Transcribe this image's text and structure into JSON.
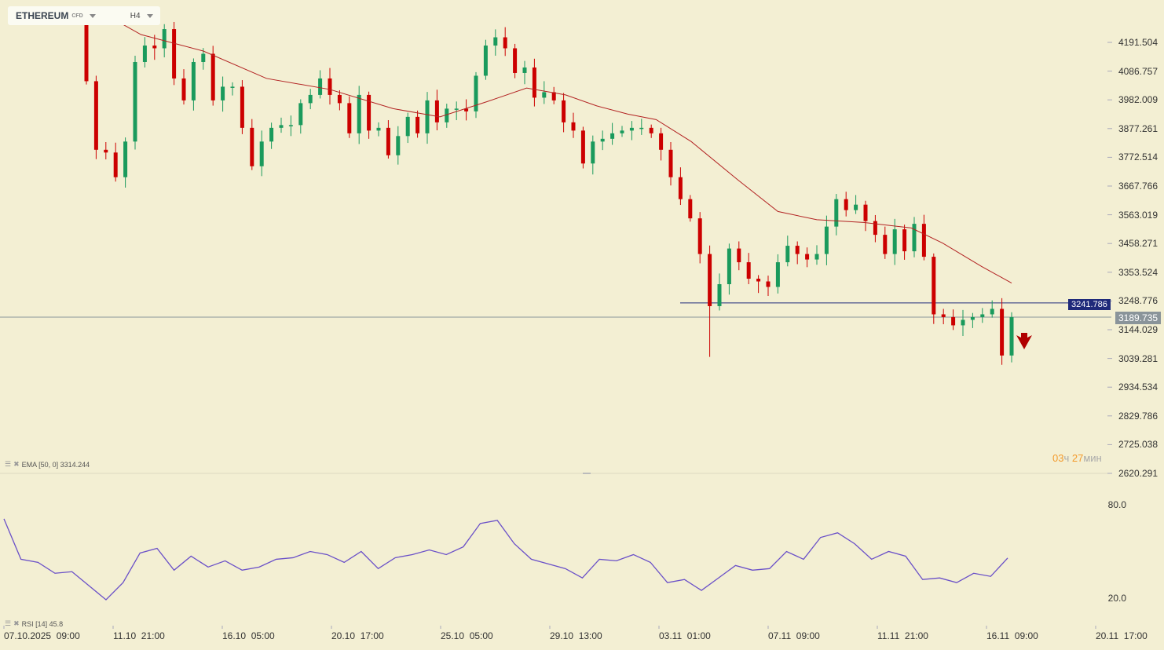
{
  "header": {
    "symbol": "ETHEREUM",
    "badge": "CFD",
    "timeframe": "H4"
  },
  "indicators": {
    "ema_label": "EMA [50, 0] 3314.244",
    "rsi_label": "RSI [14] 45.8"
  },
  "timer": {
    "hours": "03",
    "h_unit": "ч",
    "minutes": "27",
    "m_unit": "мин"
  },
  "colors": {
    "up": "#1a9a5c",
    "down": "#cc0000",
    "ema": "#b22222",
    "rsi": "#6a50c8",
    "level": "#1f2a7a",
    "current": "#8a949a"
  },
  "chart_data": {
    "type": "candlestick",
    "title": "ETHEREUM CFD H4",
    "y_ticks": [
      "4191.504",
      "4086.757",
      "3982.009",
      "3877.261",
      "3772.514",
      "3667.766",
      "3563.019",
      "3458.271",
      "3353.524",
      "3248.776",
      "3144.029",
      "3039.281",
      "2934.534",
      "2829.786",
      "2725.038",
      "2620.291"
    ],
    "x_ticks": [
      "07.10.2025  09:00",
      "11.10  21:00",
      "16.10  05:00",
      "20.10  17:00",
      "25.10  05:00",
      "29.10  13:00",
      "03.11  01:00",
      "07.11  09:00",
      "11.11  21:00",
      "16.11  09:00",
      "20.11  17:00"
    ],
    "first_open": 4270,
    "closes": [
      4050,
      3800,
      3790,
      3700,
      3830,
      4120,
      4180,
      4170,
      4240,
      4060,
      3980,
      4120,
      4150,
      3980,
      4030,
      4030,
      3880,
      3740,
      3830,
      3880,
      3890,
      3890,
      3970,
      4000,
      4060,
      4000,
      3970,
      3860,
      4000,
      3870,
      3880,
      3780,
      3850,
      3920,
      3860,
      3980,
      3900,
      3950,
      3950,
      3940,
      4070,
      4180,
      4210,
      4170,
      4080,
      4100,
      3990,
      4010,
      3980,
      3900,
      3870,
      3750,
      3830,
      3840,
      3860,
      3870,
      3880,
      3880,
      3860,
      3800,
      3700,
      3620,
      3550,
      3420,
      3230,
      3310,
      3440,
      3390,
      3330,
      3320,
      3300,
      3390,
      3450,
      3420,
      3400,
      3420,
      3520,
      3620,
      3580,
      3600,
      3540,
      3490,
      3420,
      3510,
      3430,
      3530,
      3410,
      3200,
      3190,
      3160,
      3180,
      3190,
      3200,
      3220,
      3050,
      3189.735
    ],
    "ema50": [
      [
        3.6,
        4260
      ],
      [
        5.6,
        4220
      ],
      [
        12,
        4160
      ],
      [
        18.5,
        4060
      ],
      [
        25,
        4020
      ],
      [
        31.5,
        3950
      ],
      [
        36.3,
        3920
      ],
      [
        41.1,
        3975
      ],
      [
        45.2,
        4025
      ],
      [
        49.2,
        4000
      ],
      [
        52.4,
        3960
      ],
      [
        55.6,
        3930
      ],
      [
        58.5,
        3910
      ],
      [
        62.1,
        3830
      ],
      [
        66.9,
        3690
      ],
      [
        71,
        3575
      ],
      [
        75,
        3545
      ],
      [
        79.8,
        3535
      ],
      [
        84.7,
        3515
      ],
      [
        87.9,
        3460
      ],
      [
        91.9,
        3375
      ],
      [
        95,
        3314.244
      ]
    ],
    "levels": {
      "resistance": "3241.786",
      "current": "3189.735"
    },
    "signal": "sell-arrow",
    "rsi": {
      "period": 14,
      "ticks": [
        "80.0",
        "20.0"
      ],
      "ylim": [
        20,
        80
      ],
      "values": [
        71,
        45,
        43,
        36,
        37,
        28,
        19,
        30,
        49,
        52,
        38,
        47,
        40,
        44,
        38,
        40,
        45,
        46,
        50,
        48,
        43,
        50,
        39,
        46,
        48,
        51,
        48,
        53,
        68,
        70,
        55,
        45,
        42,
        39,
        33,
        45,
        44,
        48,
        43,
        30,
        32,
        25,
        33,
        41,
        38,
        39,
        50,
        45,
        59,
        62,
        55,
        45,
        50,
        47,
        32,
        33,
        30,
        36,
        34,
        45.8
      ]
    }
  }
}
